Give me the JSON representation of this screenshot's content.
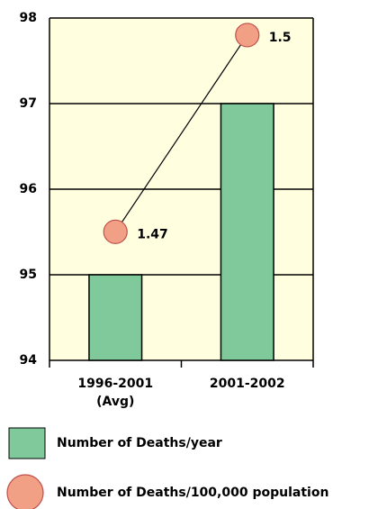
{
  "chart_data": {
    "type": "bar",
    "categories": [
      "1996-2001 (Avg)",
      "2001-2002"
    ],
    "series": [
      {
        "name": "Number of Deaths/year",
        "type": "bar",
        "color": "#80c99a",
        "values": [
          95,
          97
        ]
      },
      {
        "name": "Number of Deaths/100,000 population",
        "type": "line",
        "axis": "y2",
        "color": "#f2a085",
        "values": [
          1.47,
          1.5
        ]
      }
    ],
    "ylim": [
      94,
      98
    ],
    "yticks": [
      94,
      95,
      96,
      97,
      98
    ],
    "y2lim": [
      1.4504,
      1.5026
    ],
    "grid": true
  }
}
